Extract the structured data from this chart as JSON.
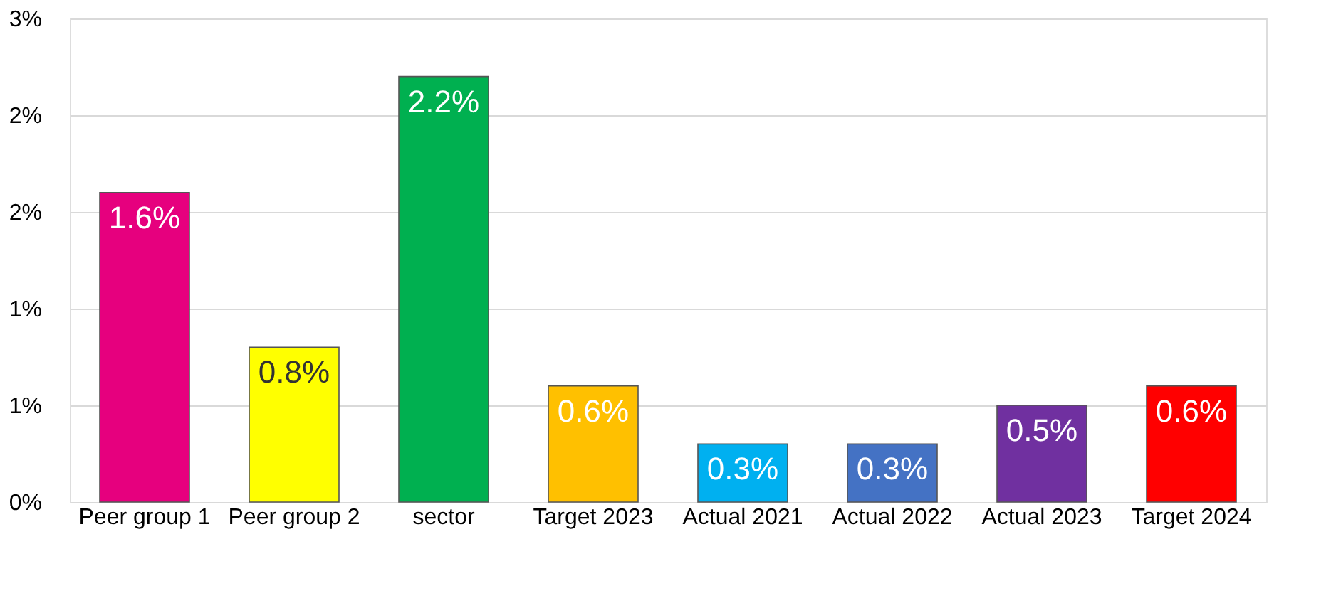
{
  "chart_data": {
    "type": "bar",
    "categories": [
      "Peer group 1",
      "Peer group 2",
      "sector",
      "Target 2023",
      "Actual 2021",
      "Actual 2022",
      "Actual 2023",
      "Target 2024"
    ],
    "values": [
      1.6,
      0.8,
      2.2,
      0.6,
      0.3,
      0.3,
      0.5,
      0.6
    ],
    "value_labels": [
      "1.6%",
      "0.8%",
      "2.2%",
      "0.6%",
      "0.3%",
      "0.3%",
      "0.5%",
      "0.6%"
    ],
    "colors": [
      "#e6007e",
      "#ffff00",
      "#00b050",
      "#ffc000",
      "#00b0f0",
      "#4472c4",
      "#7030a0",
      "#ff0000"
    ],
    "ylim": [
      0,
      2.5
    ],
    "yticks": [
      {
        "value": 0,
        "label": "0%"
      },
      {
        "value": 0.5,
        "label": "1%"
      },
      {
        "value": 1.0,
        "label": "1%"
      },
      {
        "value": 1.5,
        "label": "2%"
      },
      {
        "value": 2.0,
        "label": "2%"
      },
      {
        "value": 2.5,
        "label": "3%"
      }
    ],
    "grid": "y"
  }
}
